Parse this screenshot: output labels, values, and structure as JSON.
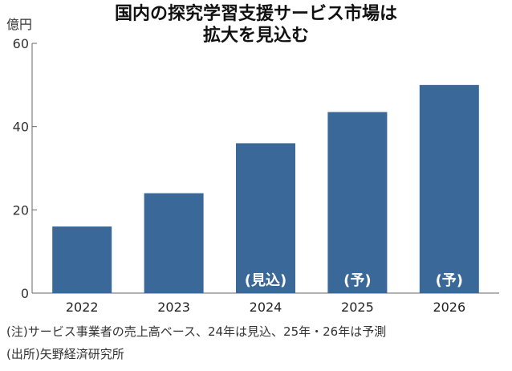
{
  "chart_data": {
    "type": "bar",
    "title_lines": [
      "国内の探究学習支援サービス市場は",
      "拡大を見込む"
    ],
    "unit": "億円",
    "categories": [
      "2022",
      "2023",
      "2024",
      "2025",
      "2026"
    ],
    "values": [
      16,
      24,
      36,
      43.5,
      50
    ],
    "bar_labels": [
      "",
      "",
      "(見込)",
      "(予)",
      "(予)"
    ],
    "yticks": [
      0,
      20,
      40,
      60
    ],
    "ylim": [
      0,
      60
    ],
    "bar_color": "#3a6898",
    "grid": false
  },
  "notes": [
    "(注)サービス事業者の売上高ベース、24年は見込、25年・26年は予測",
    "(出所)矢野経済研究所"
  ]
}
